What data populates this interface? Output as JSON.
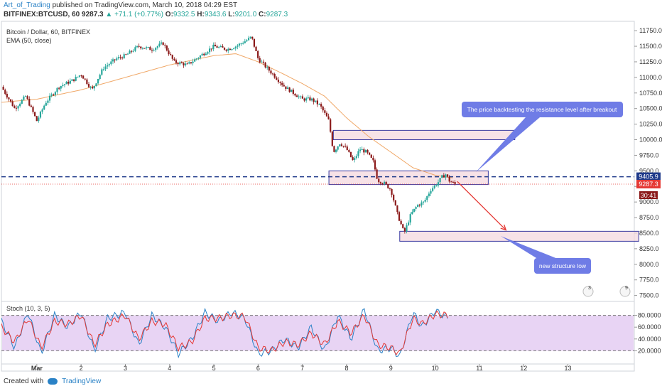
{
  "header": {
    "author": "Art_of_Trading",
    "published": "published on TradingView.com, March 10, 2018 04:29 EST",
    "symbol": "BITFINEX:BTCUSD, 60",
    "last": "9287.3",
    "change": "▲ +71.1 (+0.77%)",
    "o_label": "O:",
    "o": "9332.5",
    "h_label": "H:",
    "h": "9343.6",
    "l_label": "L:",
    "l": "9201.0",
    "c_label": "C:",
    "c": "9287.3"
  },
  "legend": {
    "line1": "Bitcoin / Dollar, 60, BITFINEX",
    "line2": "EMA (50, close)",
    "stoch": "Stoch (10, 3, 5)"
  },
  "footer": {
    "created": "Created with",
    "brand": "TradingView"
  },
  "colors": {
    "up": "#26a69a",
    "down": "#8b1a1a",
    "ema": "#f0a868",
    "box_fill": "#f4d8df",
    "box_stroke": "#3a3aa0",
    "callout": "#6f7ce6",
    "arrow": "#e53935",
    "stoch_bg": "#e8d4f4",
    "k_line": "#2a82c6",
    "d_line": "#e53935",
    "level": "#1f3a8a",
    "last_price": "#e53935"
  },
  "annotations": {
    "callout_top": "The price backtesting the resistance level after breakout",
    "callout_bottom": "new structure low",
    "flag_left": "3",
    "flag_right": "9"
  },
  "price_tags": {
    "level": "9405.9",
    "last": "9287.3",
    "countdown": "30:41"
  },
  "chart_data": [
    {
      "type": "candlestick",
      "title": "Bitcoin / Dollar, 60, BITFINEX",
      "x_ticks": [
        "Mar",
        "2",
        "3",
        "4",
        "5",
        "6",
        "7",
        "8",
        "9",
        "10",
        "11",
        "12",
        "13"
      ],
      "x_tick_days": [
        1,
        2,
        3,
        4,
        5,
        6,
        7,
        8,
        9,
        10,
        11,
        12,
        13
      ],
      "x_range": [
        0.2,
        14.5
      ],
      "y_ticks": [
        7500,
        7750,
        8000,
        8250,
        8500,
        8750,
        9000,
        9250,
        9500,
        9750,
        10000,
        10250,
        10500,
        10750,
        11000,
        11250,
        11500,
        11750
      ],
      "ylim": [
        7450,
        11900
      ],
      "price_path": [
        [
          0.2,
          10850
        ],
        [
          0.5,
          10500
        ],
        [
          0.75,
          10700
        ],
        [
          1.0,
          10300
        ],
        [
          1.2,
          10600
        ],
        [
          1.5,
          10850
        ],
        [
          1.8,
          10950
        ],
        [
          2.0,
          11050
        ],
        [
          2.25,
          10800
        ],
        [
          2.5,
          11150
        ],
        [
          2.8,
          11300
        ],
        [
          3.0,
          11350
        ],
        [
          3.3,
          11500
        ],
        [
          3.6,
          11450
        ],
        [
          3.85,
          11550
        ],
        [
          4.1,
          11250
        ],
        [
          4.4,
          11200
        ],
        [
          4.7,
          11350
        ],
        [
          5.0,
          11500
        ],
        [
          5.3,
          11450
        ],
        [
          5.5,
          11500
        ],
        [
          5.75,
          11600
        ],
        [
          5.85,
          11650
        ],
        [
          6.0,
          11300
        ],
        [
          6.2,
          11150
        ],
        [
          6.4,
          11000
        ],
        [
          6.6,
          10850
        ],
        [
          6.8,
          10750
        ],
        [
          7.0,
          10650
        ],
        [
          7.2,
          10650
        ],
        [
          7.4,
          10550
        ],
        [
          7.6,
          10300
        ],
        [
          7.7,
          9800
        ],
        [
          7.85,
          9950
        ],
        [
          8.0,
          9850
        ],
        [
          8.15,
          9650
        ],
        [
          8.3,
          9850
        ],
        [
          8.45,
          9800
        ],
        [
          8.6,
          9650
        ],
        [
          8.7,
          9350
        ],
        [
          8.85,
          9300
        ],
        [
          9.0,
          9200
        ],
        [
          9.15,
          8800
        ],
        [
          9.3,
          8500
        ],
        [
          9.45,
          8800
        ],
        [
          9.6,
          8950
        ],
        [
          9.75,
          9000
        ],
        [
          9.9,
          9200
        ],
        [
          10.05,
          9300
        ],
        [
          10.15,
          9400
        ],
        [
          10.25,
          9450
        ],
        [
          10.3,
          9350
        ],
        [
          10.45,
          9287
        ]
      ],
      "ema50": [
        [
          0.2,
          10600
        ],
        [
          1.0,
          10650
        ],
        [
          2.0,
          10800
        ],
        [
          3.0,
          11000
        ],
        [
          4.0,
          11200
        ],
        [
          5.0,
          11350
        ],
        [
          5.5,
          11380
        ],
        [
          6.0,
          11250
        ],
        [
          6.5,
          11080
        ],
        [
          7.0,
          10900
        ],
        [
          7.5,
          10700
        ],
        [
          8.0,
          10350
        ],
        [
          8.5,
          10050
        ],
        [
          9.0,
          9800
        ],
        [
          9.5,
          9550
        ],
        [
          10.0,
          9430
        ],
        [
          10.45,
          9380
        ]
      ],
      "horizontal_levels": [
        9405.9,
        9287.3
      ],
      "zones": [
        {
          "from_day": 7.7,
          "to_day": 11.8,
          "low": 10000,
          "high": 10150
        },
        {
          "from_day": 7.6,
          "to_day": 11.2,
          "low": 9280,
          "high": 9500
        },
        {
          "from_day": 9.2,
          "to_day": 14.6,
          "low": 8370,
          "high": 8530
        }
      ],
      "arrow": {
        "from": [
          10.5,
          9330
        ],
        "to": [
          11.6,
          8550
        ]
      }
    },
    {
      "type": "line",
      "title": "Stoch (10, 3, 5)",
      "y_ticks": [
        20,
        40,
        60,
        80
      ],
      "y_tick_labels": [
        "20.0000",
        "40.0000",
        "60.0000",
        "80.0000"
      ],
      "ylim": [
        0,
        100
      ],
      "band": [
        20,
        80
      ],
      "series": [
        {
          "role": "k",
          "values": [
            [
              0.2,
              70
            ],
            [
              0.5,
              25
            ],
            [
              0.8,
              85
            ],
            [
              1.1,
              15
            ],
            [
              1.4,
              80
            ],
            [
              1.7,
              60
            ],
            [
              2.0,
              85
            ],
            [
              2.3,
              20
            ],
            [
              2.6,
              75
            ],
            [
              3.0,
              85
            ],
            [
              3.3,
              30
            ],
            [
              3.6,
              80
            ],
            [
              3.9,
              60
            ],
            [
              4.2,
              15
            ],
            [
              4.5,
              40
            ],
            [
              4.8,
              85
            ],
            [
              5.1,
              70
            ],
            [
              5.4,
              85
            ],
            [
              5.7,
              75
            ],
            [
              6.0,
              15
            ],
            [
              6.3,
              20
            ],
            [
              6.6,
              40
            ],
            [
              6.9,
              25
            ],
            [
              7.2,
              60
            ],
            [
              7.5,
              20
            ],
            [
              7.8,
              80
            ],
            [
              8.1,
              40
            ],
            [
              8.4,
              90
            ],
            [
              8.7,
              20
            ],
            [
              9.0,
              25
            ],
            [
              9.2,
              10
            ],
            [
              9.5,
              85
            ],
            [
              9.7,
              60
            ],
            [
              10.0,
              88
            ],
            [
              10.3,
              75
            ]
          ]
        },
        {
          "role": "d",
          "values": [
            [
              0.2,
              60
            ],
            [
              0.5,
              35
            ],
            [
              0.8,
              75
            ],
            [
              1.1,
              25
            ],
            [
              1.4,
              70
            ],
            [
              1.7,
              65
            ],
            [
              2.0,
              80
            ],
            [
              2.3,
              30
            ],
            [
              2.6,
              65
            ],
            [
              3.0,
              80
            ],
            [
              3.3,
              40
            ],
            [
              3.6,
              70
            ],
            [
              3.9,
              65
            ],
            [
              4.2,
              25
            ],
            [
              4.5,
              35
            ],
            [
              4.8,
              75
            ],
            [
              5.1,
              75
            ],
            [
              5.4,
              80
            ],
            [
              5.7,
              78
            ],
            [
              6.0,
              25
            ],
            [
              6.3,
              20
            ],
            [
              6.6,
              35
            ],
            [
              6.9,
              30
            ],
            [
              7.2,
              50
            ],
            [
              7.5,
              30
            ],
            [
              7.8,
              70
            ],
            [
              8.1,
              50
            ],
            [
              8.4,
              80
            ],
            [
              8.7,
              30
            ],
            [
              9.0,
              25
            ],
            [
              9.2,
              15
            ],
            [
              9.5,
              75
            ],
            [
              9.7,
              65
            ],
            [
              10.0,
              82
            ],
            [
              10.3,
              80
            ]
          ]
        }
      ]
    }
  ]
}
